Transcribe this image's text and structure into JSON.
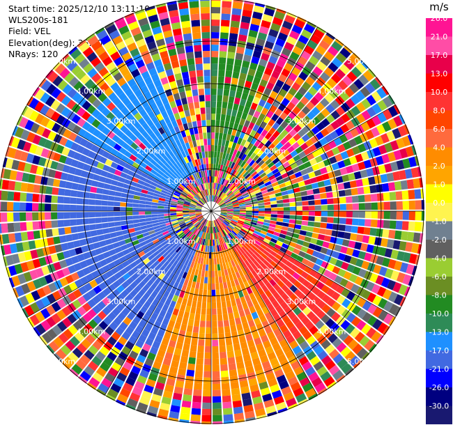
{
  "header": {
    "start_time": "Start time: 2025/12/10 13:11:10",
    "instrument": "WLS200s-181",
    "field": "Field: VEL",
    "elevation": "Elevation(deg): 35.00",
    "nrays": "NRays: 120"
  },
  "chart_data": {
    "type": "heatmap",
    "projection": "polar (PPI)",
    "field": "VEL",
    "n_rays": 120,
    "range_rings": {
      "values_km": [
        1.0,
        2.0,
        3.0,
        4.0,
        5.0
      ],
      "labels": [
        "1.00km",
        "2.00km",
        "3.00km",
        "4.00km",
        "5.00km"
      ]
    },
    "grid": true,
    "colorbar": {
      "unit": "m/s",
      "ticks": [
        "26.0",
        "21.0",
        "17.0",
        "13.0",
        "10.0",
        "8.0",
        "6.0",
        "4.0",
        "2.0",
        "1.0",
        "0.0",
        "-1.0",
        "-2.0",
        "-4.0",
        "-6.0",
        "-8.0",
        "-10.0",
        "-13.0",
        "-17.0",
        "-21.0",
        "-26.0",
        "-30.0"
      ],
      "colors": [
        "#ff1493",
        "#ff4da6",
        "#e8004a",
        "#ff0000",
        "#ff3333",
        "#ff4500",
        "#ff6a3d",
        "#ff8c00",
        "#ffa500",
        "#ffff00",
        "#fff44f",
        "#708090",
        "#606060",
        "#9acd32",
        "#6b8e23",
        "#228b22",
        "#2e8b57",
        "#1e90ff",
        "#4169e1",
        "#0000ff",
        "#000080",
        "#191970"
      ]
    },
    "sectors": [
      {
        "from_deg": 200,
        "to_deg": 300,
        "value": -17.0,
        "note": "coherent approaching region, west-southwest"
      },
      {
        "from_deg": 300,
        "to_deg": 340,
        "value": -13.0
      },
      {
        "from_deg": 0,
        "to_deg": 20,
        "value": -8.0
      },
      {
        "from_deg": 150,
        "to_deg": 200,
        "value": 4.0,
        "note": "coherent receding region, south"
      },
      {
        "from_deg": 120,
        "to_deg": 150,
        "value": 10.0
      }
    ]
  }
}
